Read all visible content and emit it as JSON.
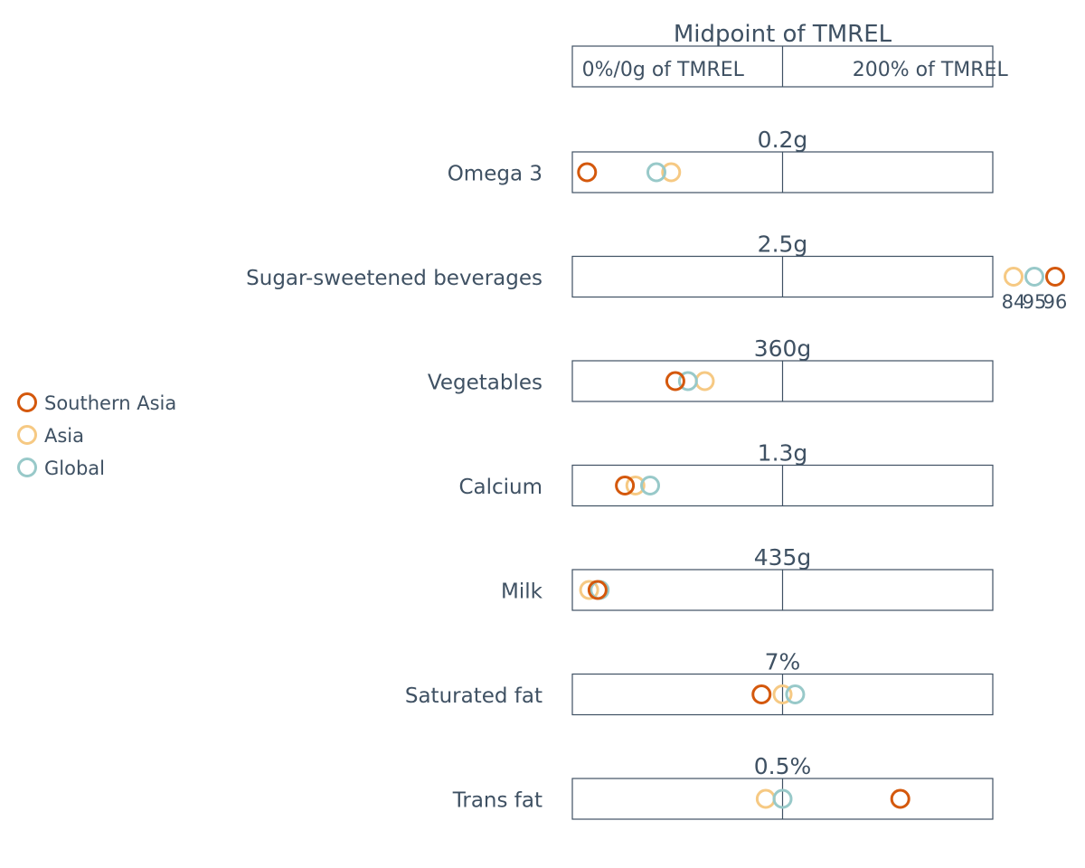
{
  "chart_data": {
    "type": "scatter",
    "header": {
      "title": "Midpoint of TMREL",
      "left_label": "0%/0g of TMREL",
      "right_label": "200% of TMREL"
    },
    "legend": {
      "placement": "left",
      "items": [
        {
          "name": "Southern Asia",
          "color": "#d4580c"
        },
        {
          "name": "Asia",
          "color": "#f6c983"
        },
        {
          "name": "Global",
          "color": "#98c9c9"
        }
      ]
    },
    "x_unit": "percent of TMREL",
    "xlim": [
      0,
      200
    ],
    "rows": [
      {
        "label": "Omega 3",
        "midpoint": "0.2g",
        "values": {
          "Southern Asia": 7,
          "Asia": 47,
          "Global": 40
        }
      },
      {
        "label": "Sugar-sweetened beverages",
        "midpoint": "2.5g",
        "overflow_labels": {
          "Asia": "84",
          "Global": "95",
          "Southern Asia": "96"
        }
      },
      {
        "label": "Vegetables",
        "midpoint": "360g",
        "values": {
          "Southern Asia": 49,
          "Asia": 63,
          "Global": 55
        }
      },
      {
        "label": "Calcium",
        "midpoint": "1.3g",
        "values": {
          "Southern Asia": 25,
          "Asia": 30,
          "Global": 37
        }
      },
      {
        "label": "Milk",
        "midpoint": "435g",
        "values": {
          "Southern Asia": 12,
          "Asia": 8,
          "Global": 13
        }
      },
      {
        "label": "Saturated fat",
        "midpoint": "7%",
        "values": {
          "Southern Asia": 90,
          "Asia": 100,
          "Global": 106
        }
      },
      {
        "label": "Trans fat",
        "midpoint": "0.5%",
        "values": {
          "Southern Asia": 156,
          "Asia": 92,
          "Global": 100
        }
      }
    ]
  }
}
